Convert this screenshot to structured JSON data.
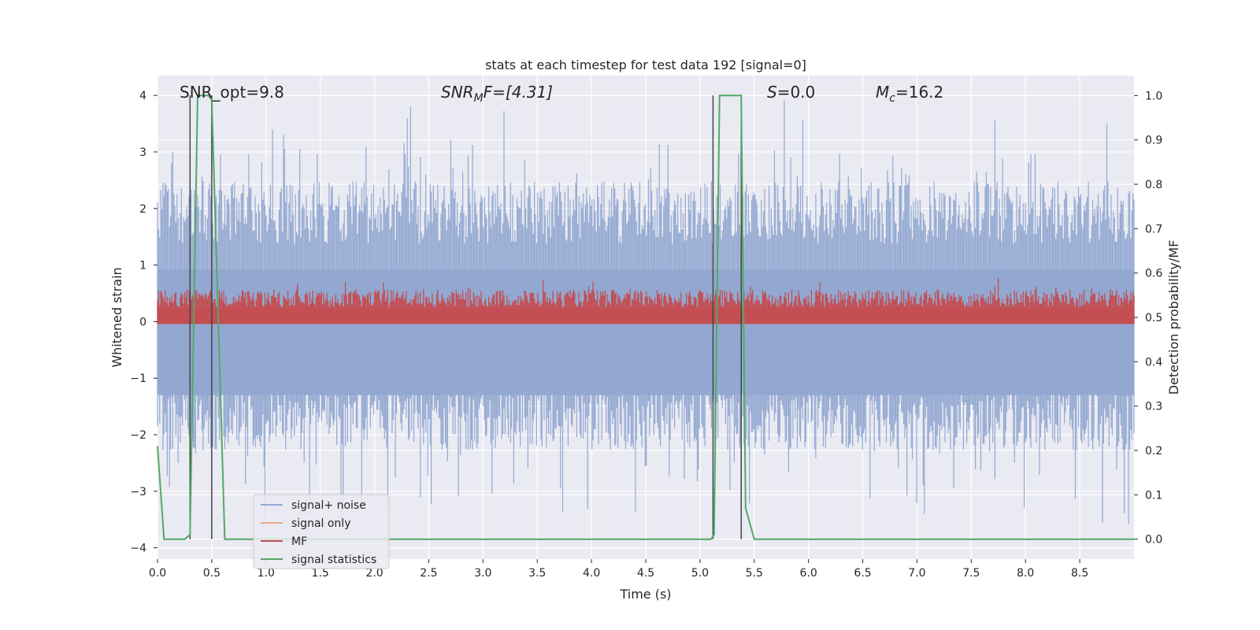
{
  "chart_data": {
    "type": "line",
    "title": "stats at each timestep for test data 192 [signal=0]",
    "xlabel": "Time (s)",
    "ylabel": "Whitened strain",
    "ylabel_right": "Detection probability/MF",
    "xlim": [
      0.0,
      9.0
    ],
    "ylim": [
      -4.2,
      4.35
    ],
    "ylim_right": [
      -0.045,
      1.045
    ],
    "x_ticks": [
      0.0,
      0.5,
      1.0,
      1.5,
      2.0,
      2.5,
      3.0,
      3.5,
      4.0,
      4.5,
      5.0,
      5.5,
      6.0,
      6.5,
      7.0,
      7.5,
      8.0,
      8.5
    ],
    "x_tick_labels": [
      "0.0",
      "0.5",
      "1.0",
      "1.5",
      "2.0",
      "2.5",
      "3.0",
      "3.5",
      "4.0",
      "4.5",
      "5.0",
      "5.5",
      "6.0",
      "6.5",
      "7.0",
      "7.5",
      "8.0",
      "8.5"
    ],
    "y_ticks": [
      4,
      3,
      2,
      1,
      0,
      -1,
      -2,
      -3,
      -4
    ],
    "y_tick_labels": [
      "4",
      "3",
      "2",
      "1",
      "0",
      "−1",
      "−2",
      "−3",
      "−4"
    ],
    "y_right_ticks": [
      1.0,
      0.9,
      0.8,
      0.7,
      0.6,
      0.5,
      0.4,
      0.3,
      0.2,
      0.1,
      0.0
    ],
    "y_right_tick_labels": [
      "1.0",
      "0.9",
      "0.8",
      "0.7",
      "0.6",
      "0.5",
      "0.4",
      "0.3",
      "0.2",
      "0.1",
      "0.0"
    ],
    "grid": true,
    "legend_placement": "lower-left",
    "annotations": {
      "snr_opt": "SNR_opt=9.8",
      "snr_mf_prefix": "SNR",
      "snr_mf_sub": "M",
      "snr_mf_rest": "F=[4.31]",
      "s_var": "S",
      "s_rest": "=0.0",
      "mc_var": "M",
      "mc_sub": "c",
      "mc_rest": "=16.2"
    },
    "series": [
      {
        "name": "signal+ noise",
        "color": "#92a8d1",
        "axis": "left",
        "band": {
          "lower_mean": -1.4,
          "lower_spread": 0.55,
          "upper_mean": 1.6,
          "upper_spread": 0.55,
          "min_peak": -3.65,
          "max_peak": 4.0
        }
      },
      {
        "name": "signal only",
        "color": "#e8a792",
        "axis": "left",
        "x": [
          0.0,
          9.0
        ],
        "y": [
          0.0,
          0.0
        ]
      },
      {
        "name": "MF",
        "color": "#c44e52",
        "axis": "right",
        "band": {
          "lower": 0.485,
          "upper_mean": 0.535,
          "upper_spread": 0.04,
          "max_peak": 0.59
        }
      },
      {
        "name": "signal statistics",
        "color": "#55a868",
        "axis": "right",
        "x": [
          0.0,
          0.06,
          0.25,
          0.3,
          0.37,
          0.47,
          0.5,
          0.62,
          5.1,
          5.13,
          5.18,
          5.38,
          5.42,
          5.5,
          9.0
        ],
        "y": [
          0.21,
          0.0,
          0.0,
          0.01,
          1.0,
          1.0,
          0.99,
          0.0,
          0.0,
          0.01,
          1.0,
          1.0,
          0.07,
          0.0,
          0.0
        ]
      }
    ],
    "vertical_markers": {
      "color": "#444444",
      "x": [
        0.3,
        0.5,
        5.12,
        5.38
      ],
      "y_top": 4.0,
      "y_bottom_right": 0.0
    }
  }
}
